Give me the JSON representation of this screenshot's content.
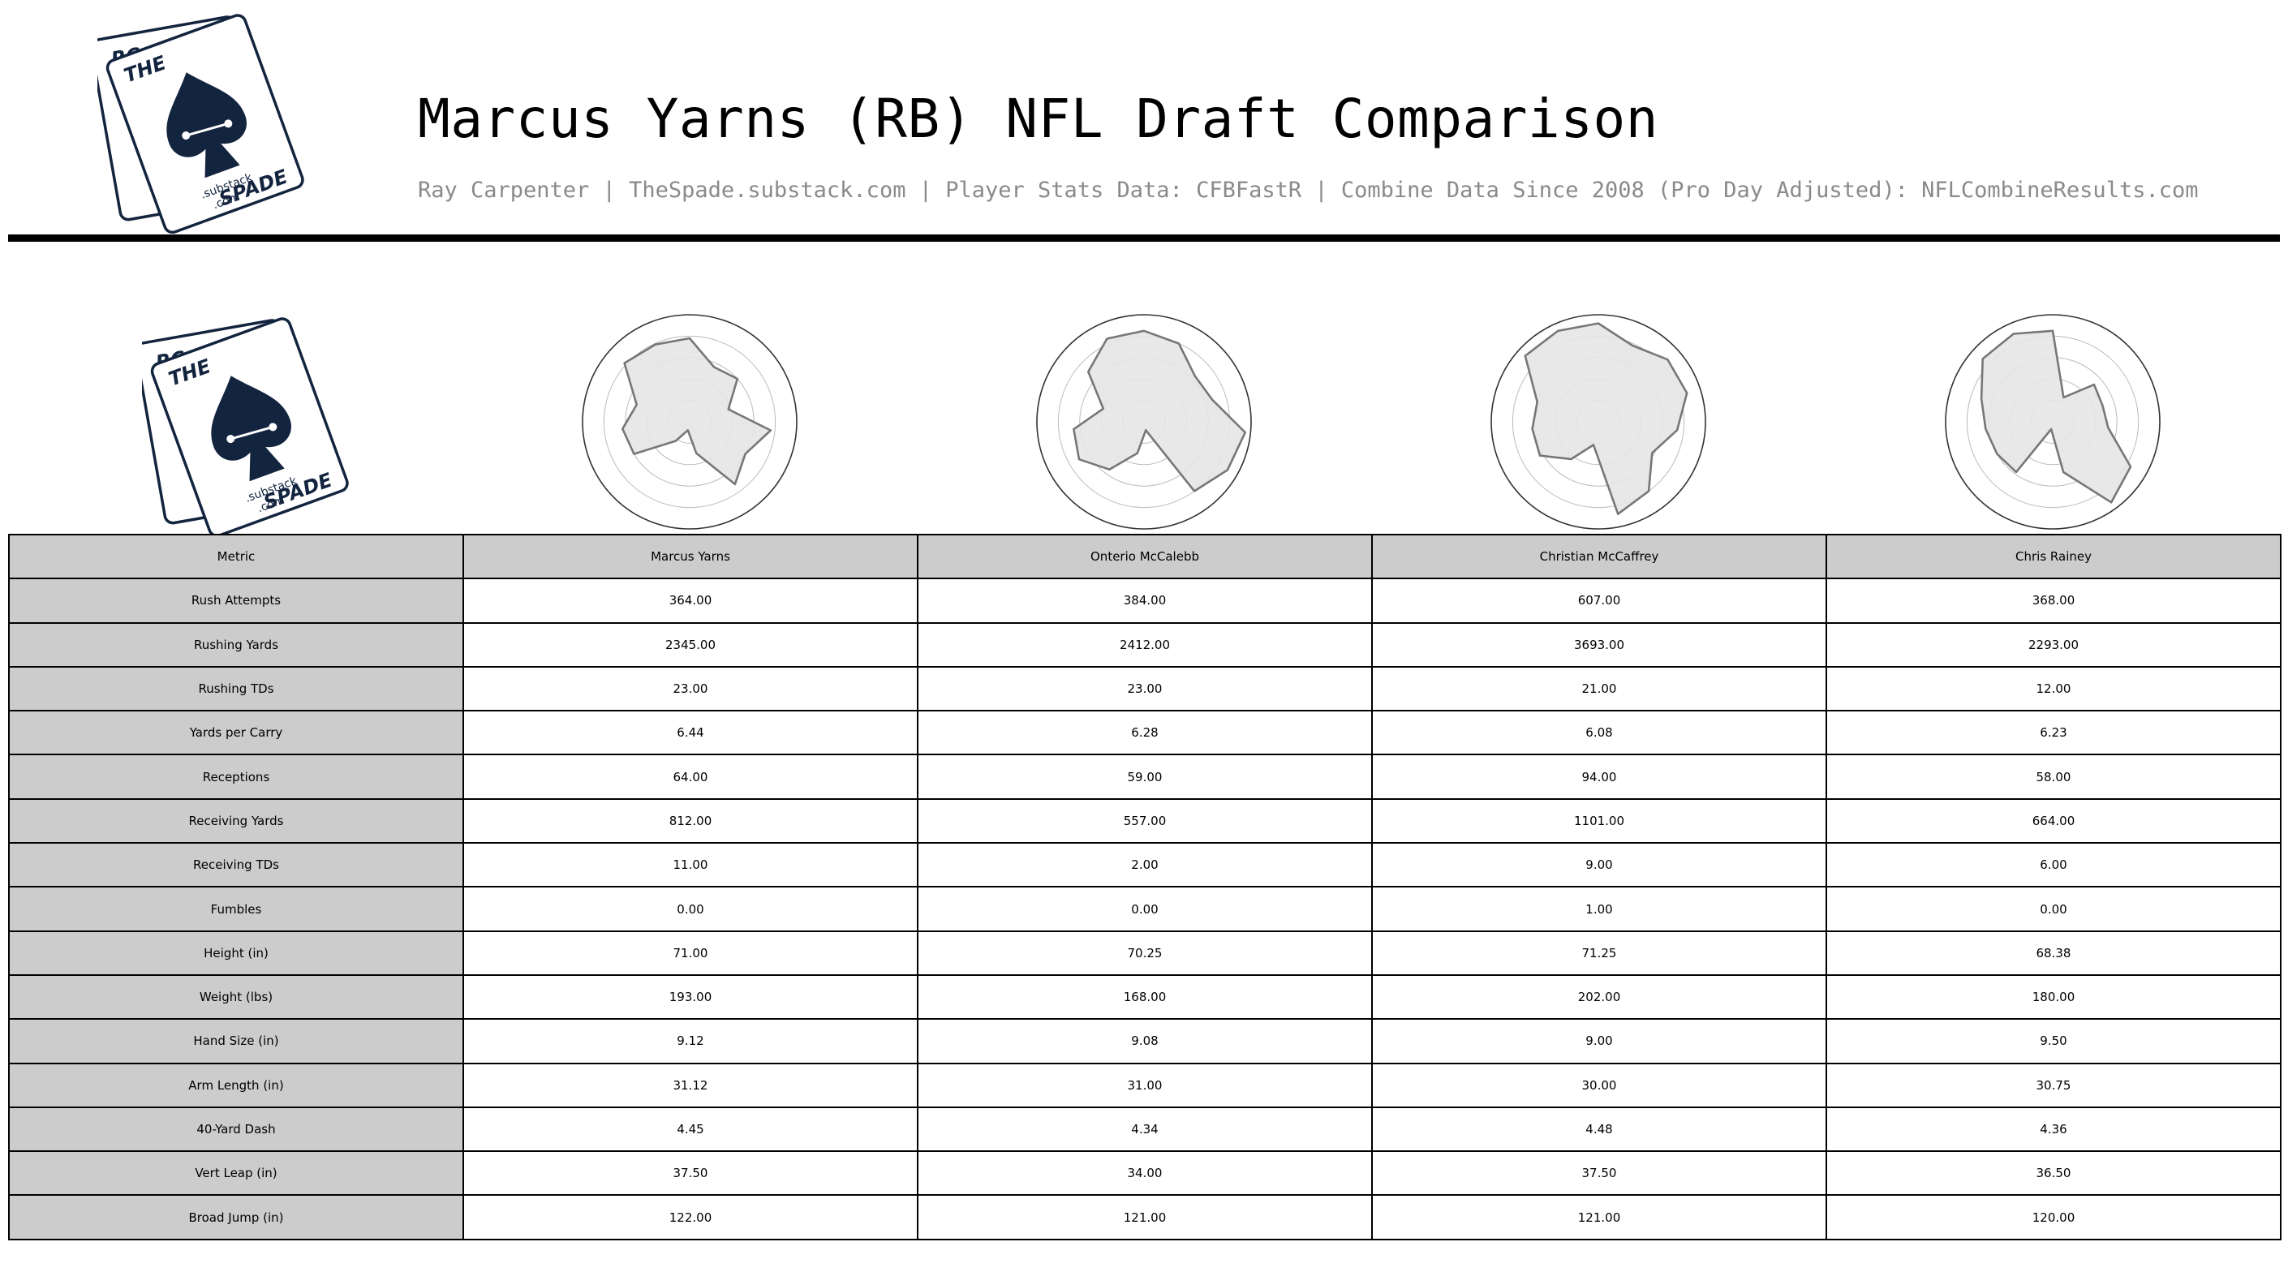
{
  "header": {
    "title": "Marcus Yarns (RB) NFL Draft Comparison",
    "subtitle": "Ray Carpenter | TheSpade.substack.com | Player Stats Data: CFBFastR | Combine Data Since 2008 (Pro Day Adjusted): NFLCombineResults.com",
    "logo": {
      "letters_back": "RC",
      "letters_front_left": "THE",
      "letters_front_right": "SPADE",
      "substack": ".substack",
      "com": ".com",
      "brand_color": "#13243f"
    }
  },
  "colors": {
    "header_cell": "#cccccc",
    "radar_fill": "#e6e6e6",
    "radar_stroke": "#777777",
    "divider": "#000000"
  },
  "chart_data": {
    "type": "table",
    "columns": [
      "Metric",
      "Marcus Yarns",
      "Onterio McCalebb",
      "Christian McCaffrey",
      "Chris Rainey"
    ],
    "rows": [
      {
        "metric": "Rush Attempts",
        "values": [
          "364.00",
          "384.00",
          "607.00",
          "368.00"
        ]
      },
      {
        "metric": "Rushing Yards",
        "values": [
          "2345.00",
          "2412.00",
          "3693.00",
          "2293.00"
        ]
      },
      {
        "metric": "Rushing TDs",
        "values": [
          "23.00",
          "23.00",
          "21.00",
          "12.00"
        ]
      },
      {
        "metric": "Yards per Carry",
        "values": [
          "6.44",
          "6.28",
          "6.08",
          "6.23"
        ]
      },
      {
        "metric": "Receptions",
        "values": [
          "64.00",
          "59.00",
          "94.00",
          "58.00"
        ]
      },
      {
        "metric": "Receiving Yards",
        "values": [
          "812.00",
          "557.00",
          "1101.00",
          "664.00"
        ]
      },
      {
        "metric": "Receiving TDs",
        "values": [
          "11.00",
          "2.00",
          "9.00",
          "6.00"
        ]
      },
      {
        "metric": "Fumbles",
        "values": [
          "0.00",
          "0.00",
          "1.00",
          "0.00"
        ]
      },
      {
        "metric": "Height (in)",
        "values": [
          "71.00",
          "70.25",
          "71.25",
          "68.38"
        ]
      },
      {
        "metric": "Weight (lbs)",
        "values": [
          "193.00",
          "168.00",
          "202.00",
          "180.00"
        ]
      },
      {
        "metric": "Hand Size (in)",
        "values": [
          "9.12",
          "9.08",
          "9.00",
          "9.50"
        ]
      },
      {
        "metric": "Arm Length (in)",
        "values": [
          "31.12",
          "31.00",
          "30.00",
          "30.75"
        ]
      },
      {
        "metric": "40-Yard Dash",
        "values": [
          "4.45",
          "4.34",
          "4.48",
          "4.36"
        ]
      },
      {
        "metric": "Vert Leap (in)",
        "values": [
          "37.50",
          "34.00",
          "37.50",
          "36.50"
        ]
      },
      {
        "metric": "Broad Jump (in)",
        "values": [
          "122.00",
          "121.00",
          "121.00",
          "120.00"
        ]
      }
    ],
    "radar": {
      "type": "radar",
      "axes_count": 15,
      "rmax": 1,
      "grid_rings": [
        0.2,
        0.4,
        0.6,
        0.8
      ],
      "series": [
        {
          "player": "Marcus Yarns",
          "values": [
            0.78,
            0.56,
            0.6,
            0.38,
            0.76,
            0.6,
            0.72,
            0.3,
            0.08,
            0.22,
            0.6,
            0.63,
            0.52,
            0.82,
            0.79
          ]
        },
        {
          "player": "Onterio McCalebb",
          "values": [
            0.85,
            0.8,
            0.64,
            0.67,
            0.95,
            0.9,
            0.8,
            0.08,
            0.3,
            0.55,
            0.7,
            0.66,
            0.4,
            0.7,
            0.85
          ]
        },
        {
          "player": "Christian McCaffrey",
          "values": [
            0.92,
            0.78,
            0.87,
            0.87,
            0.74,
            0.58,
            0.8,
            0.88,
            0.22,
            0.43,
            0.63,
            0.62,
            0.6,
            0.92,
            0.93
          ]
        },
        {
          "player": "Chris Rainey",
          "values": [
            0.85,
            0.25,
            0.52,
            0.49,
            0.52,
            0.84,
            0.93,
            0.48,
            0.07,
            0.58,
            0.6,
            0.63,
            0.7,
            0.88,
            0.9
          ]
        }
      ]
    }
  }
}
